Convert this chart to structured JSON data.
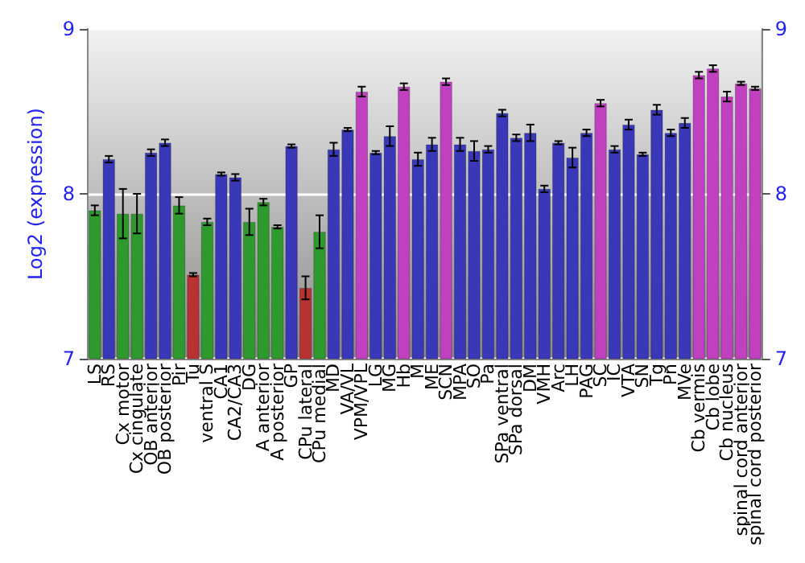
{
  "chart_data": {
    "type": "bar",
    "ylabel": "Log2 (expression)",
    "categories": [
      "LS",
      "RS",
      "Cx motor",
      "Cx cingulate",
      "OB anterior",
      "OB posterior",
      "Pir",
      "Tu",
      "ventral S",
      "CA1",
      "CA2/CA3",
      "DG",
      "A anterior",
      "A posterior",
      "GP",
      "CPu lateral",
      "CPu medial",
      "MD",
      "VA/VL",
      "VPM/VPL",
      "LG",
      "MG",
      "Hb",
      "M",
      "ME",
      "SCN",
      "MPA",
      "SO",
      "Pa",
      "SPa ventral",
      "SPa dorsal",
      "DM",
      "VMH",
      "Arc",
      "LH",
      "PAG",
      "SC",
      "IC",
      "VTA",
      "SN",
      "Tg",
      "Pn",
      "MVe",
      "Cb vermis",
      "Cb lobe",
      "Cb nucleus",
      "spinal cord anterior",
      "spinal cord posterior"
    ],
    "values": [
      7.9,
      8.21,
      7.88,
      7.88,
      8.25,
      8.31,
      7.93,
      7.51,
      7.83,
      8.12,
      8.1,
      7.83,
      7.95,
      7.8,
      8.29,
      7.43,
      7.77,
      8.27,
      8.39,
      8.62,
      8.25,
      8.35,
      8.65,
      8.21,
      8.3,
      8.68,
      8.3,
      8.26,
      8.27,
      8.49,
      8.34,
      8.37,
      8.03,
      8.31,
      8.22,
      8.37,
      8.55,
      8.27,
      8.42,
      8.24,
      8.51,
      8.37,
      8.43,
      8.72,
      8.76,
      8.59,
      8.67,
      8.64
    ],
    "errors": [
      0.03,
      0.02,
      0.15,
      0.12,
      0.02,
      0.02,
      0.05,
      0.01,
      0.02,
      0.01,
      0.02,
      0.08,
      0.02,
      0.01,
      0.01,
      0.07,
      0.1,
      0.04,
      0.01,
      0.03,
      0.01,
      0.06,
      0.02,
      0.04,
      0.04,
      0.02,
      0.04,
      0.06,
      0.02,
      0.02,
      0.02,
      0.05,
      0.02,
      0.01,
      0.06,
      0.02,
      0.02,
      0.02,
      0.03,
      0.01,
      0.03,
      0.02,
      0.03,
      0.02,
      0.02,
      0.03,
      0.01,
      0.01
    ],
    "colors": [
      "#2e9a2e",
      "#3838b8",
      "#2e9a2e",
      "#2e9a2e",
      "#3838b8",
      "#3838b8",
      "#2e9a2e",
      "#b83232",
      "#2e9a2e",
      "#3838b8",
      "#3838b8",
      "#2e9a2e",
      "#2e9a2e",
      "#2e9a2e",
      "#3838b8",
      "#b83232",
      "#2e9a2e",
      "#3838b8",
      "#3838b8",
      "#c040c0",
      "#3838b8",
      "#3838b8",
      "#c040c0",
      "#3838b8",
      "#3838b8",
      "#c040c0",
      "#3838b8",
      "#3838b8",
      "#3838b8",
      "#3838b8",
      "#3838b8",
      "#3838b8",
      "#3838b8",
      "#3838b8",
      "#3838b8",
      "#3838b8",
      "#c040c0",
      "#3838b8",
      "#3838b8",
      "#3838b8",
      "#3838b8",
      "#3838b8",
      "#3838b8",
      "#c040c0",
      "#c040c0",
      "#c040c0",
      "#c040c0",
      "#c040c0"
    ],
    "ylim": [
      7,
      9
    ],
    "yticks": [
      7,
      8,
      9
    ],
    "y2lim": [
      7,
      9
    ],
    "y2ticks": [
      7,
      8,
      9
    ],
    "grid": "y"
  }
}
